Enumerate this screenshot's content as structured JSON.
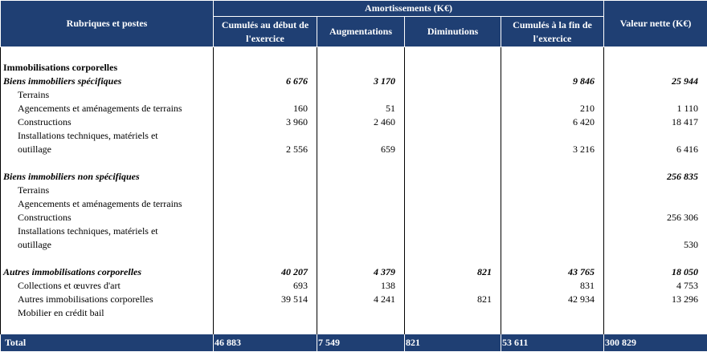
{
  "header": {
    "rubriques": "Rubriques et postes",
    "group": "Amortissements (K€)",
    "cols": [
      "Cumulés au début de l'exercice",
      "Augmentations",
      "Diminutions",
      "Cumulés à la fin de l'exercice"
    ],
    "valeur": "Valeur nette (K€)"
  },
  "rows": [
    {
      "type": "spacer"
    },
    {
      "type": "section",
      "label": "Immobilisations corporelles"
    },
    {
      "type": "subtotal",
      "label": "Biens immobiliers spécifiques",
      "v": [
        "6 676",
        "3 170",
        "",
        "9 846",
        "25 944"
      ]
    },
    {
      "type": "item",
      "label": "Terrains",
      "v": [
        "",
        "",
        "",
        "",
        ""
      ]
    },
    {
      "type": "item",
      "label": "Agencements et aménagements de terrains",
      "v": [
        "160",
        "51",
        "",
        "210",
        "1 110"
      ]
    },
    {
      "type": "item",
      "label": "Constructions",
      "v": [
        "3 960",
        "2 460",
        "",
        "6 420",
        "18 417"
      ]
    },
    {
      "type": "item2",
      "label": "Installations techniques, matériels et",
      "label2": "outillage",
      "v": [
        "2 556",
        "659",
        "",
        "3 216",
        "6 416"
      ]
    },
    {
      "type": "spacer"
    },
    {
      "type": "subtotal",
      "label": "Biens immobiliers non spécifiques",
      "v": [
        "",
        "",
        "",
        "",
        "256 835"
      ]
    },
    {
      "type": "item",
      "label": "Terrains",
      "v": [
        "",
        "",
        "",
        "",
        ""
      ]
    },
    {
      "type": "item",
      "label": "Agencements et aménagements de terrains",
      "v": [
        "",
        "",
        "",
        "",
        ""
      ]
    },
    {
      "type": "item",
      "label": "Constructions",
      "v": [
        "",
        "",
        "",
        "",
        "256 306"
      ]
    },
    {
      "type": "item2",
      "label": "Installations techniques, matériels et",
      "label2": "outillage",
      "v": [
        "",
        "",
        "",
        "",
        "530"
      ]
    },
    {
      "type": "spacer"
    },
    {
      "type": "subtotal",
      "label": "Autres immobilisations corporelles",
      "v": [
        "40 207",
        "4 379",
        "821",
        "43 765",
        "18 050"
      ]
    },
    {
      "type": "item",
      "label": "Collections et œuvres d'art",
      "v": [
        "693",
        "138",
        "",
        "831",
        "4 753"
      ]
    },
    {
      "type": "item",
      "label": "Autres immobilisations corporelles",
      "v": [
        "39 514",
        "4 241",
        "821",
        "42 934",
        "13 296"
      ]
    },
    {
      "type": "item",
      "label": "Mobilier en crédit bail",
      "v": [
        "",
        "",
        "",
        "",
        ""
      ]
    },
    {
      "type": "spacer"
    }
  ],
  "total": {
    "label": "Total",
    "v": [
      "46 883",
      "7 549",
      "821",
      "53 611",
      "300 829"
    ]
  }
}
